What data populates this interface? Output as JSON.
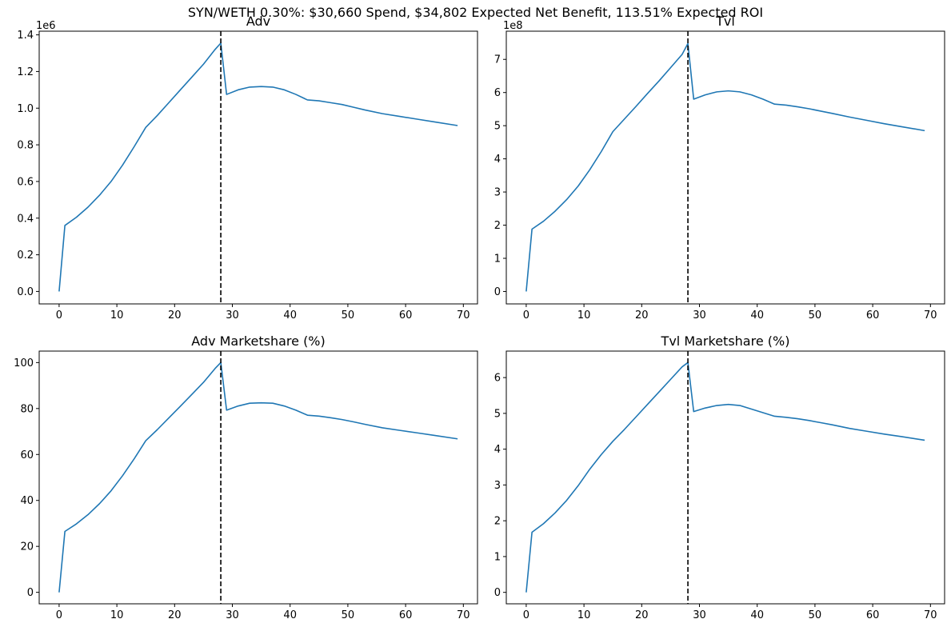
{
  "figure_title": "SYN/WETH 0.30%: $30,660 Spend, $34,802 Expected Net Benefit, 113.51% Expected ROI",
  "colors": {
    "line": "#1f77b4",
    "vline": "#000000",
    "axes": "#000000"
  },
  "chart_data": [
    {
      "type": "line",
      "title": "Adv",
      "xlabel": "",
      "ylabel": "",
      "offset_text": "1e6",
      "xlim": [
        -3.45,
        72.45
      ],
      "ylim": [
        -0.068,
        1.42
      ],
      "xticks": [
        0,
        10,
        20,
        30,
        40,
        50,
        60,
        70
      ],
      "xtick_labels": [
        "0",
        "10",
        "20",
        "30",
        "40",
        "50",
        "60",
        "70"
      ],
      "yticks": [
        0.0,
        0.2,
        0.4,
        0.6,
        0.8,
        1.0,
        1.2,
        1.4
      ],
      "ytick_labels": [
        "0.0",
        "0.2",
        "0.4",
        "0.6",
        "0.8",
        "1.0",
        "1.2",
        "1.4"
      ],
      "vline_x": 28,
      "series": [
        {
          "x": [
            0,
            1,
            3,
            5,
            7,
            9,
            11,
            13,
            15,
            17,
            19,
            21,
            23,
            25,
            27,
            28,
            29,
            31,
            33,
            35,
            37,
            39,
            41,
            43,
            45,
            47,
            49,
            51,
            53,
            56,
            59,
            62,
            65,
            69
          ],
          "y": [
            0.0,
            0.36,
            0.405,
            0.46,
            0.525,
            0.6,
            0.69,
            0.79,
            0.895,
            0.96,
            1.03,
            1.1,
            1.17,
            1.24,
            1.32,
            1.355,
            1.075,
            1.1,
            1.115,
            1.118,
            1.115,
            1.1,
            1.075,
            1.045,
            1.04,
            1.03,
            1.02,
            1.005,
            0.99,
            0.97,
            0.955,
            0.94,
            0.925,
            0.905
          ]
        }
      ]
    },
    {
      "type": "line",
      "title": "Tvl",
      "xlabel": "",
      "ylabel": "",
      "offset_text": "1e8",
      "xlim": [
        -3.45,
        72.45
      ],
      "ylim": [
        -0.375,
        7.85
      ],
      "xticks": [
        0,
        10,
        20,
        30,
        40,
        50,
        60,
        70
      ],
      "xtick_labels": [
        "0",
        "10",
        "20",
        "30",
        "40",
        "50",
        "60",
        "70"
      ],
      "yticks": [
        0,
        1,
        2,
        3,
        4,
        5,
        6,
        7
      ],
      "ytick_labels": [
        "0",
        "1",
        "2",
        "3",
        "4",
        "5",
        "6",
        "7"
      ],
      "vline_x": 28,
      "series": [
        {
          "x": [
            0,
            1,
            3,
            5,
            7,
            9,
            11,
            13,
            15,
            17,
            19,
            21,
            23,
            25,
            27,
            28,
            29,
            31,
            33,
            35,
            37,
            39,
            41,
            43,
            45,
            47,
            49,
            51,
            53,
            56,
            59,
            62,
            65,
            69
          ],
          "y": [
            0.0,
            1.88,
            2.12,
            2.42,
            2.77,
            3.18,
            3.67,
            4.22,
            4.82,
            5.2,
            5.58,
            5.97,
            6.35,
            6.75,
            7.15,
            7.48,
            5.8,
            5.93,
            6.02,
            6.05,
            6.02,
            5.93,
            5.8,
            5.65,
            5.62,
            5.57,
            5.51,
            5.44,
            5.37,
            5.26,
            5.16,
            5.06,
            4.97,
            4.85
          ]
        }
      ]
    },
    {
      "type": "line",
      "title": "Adv Marketshare (%)",
      "xlabel": "",
      "ylabel": "",
      "offset_text": "",
      "xlim": [
        -3.45,
        72.45
      ],
      "ylim": [
        -5.0,
        105.0
      ],
      "xticks": [
        0,
        10,
        20,
        30,
        40,
        50,
        60,
        70
      ],
      "xtick_labels": [
        "0",
        "10",
        "20",
        "30",
        "40",
        "50",
        "60",
        "70"
      ],
      "yticks": [
        0,
        20,
        40,
        60,
        80,
        100
      ],
      "ytick_labels": [
        "0",
        "20",
        "40",
        "60",
        "80",
        "100"
      ],
      "vline_x": 28,
      "series": [
        {
          "x": [
            0,
            1,
            3,
            5,
            7,
            9,
            11,
            13,
            15,
            17,
            19,
            21,
            23,
            25,
            27,
            28,
            29,
            31,
            33,
            35,
            37,
            39,
            41,
            43,
            45,
            47,
            49,
            51,
            53,
            56,
            59,
            62,
            65,
            69
          ],
          "y": [
            0.0,
            26.5,
            29.8,
            33.8,
            38.6,
            44.2,
            50.8,
            58.1,
            66.0,
            70.8,
            75.9,
            81.0,
            86.2,
            91.4,
            97.4,
            100.0,
            79.3,
            81.1,
            82.3,
            82.5,
            82.3,
            81.1,
            79.3,
            77.1,
            76.7,
            76.0,
            75.2,
            74.2,
            73.1,
            71.6,
            70.5,
            69.4,
            68.3,
            66.8
          ]
        }
      ]
    },
    {
      "type": "line",
      "title": "Tvl Marketshare (%)",
      "xlabel": "",
      "ylabel": "",
      "offset_text": "",
      "xlim": [
        -3.45,
        72.45
      ],
      "ylim": [
        -0.32,
        6.74
      ],
      "xticks": [
        0,
        10,
        20,
        30,
        40,
        50,
        60,
        70
      ],
      "xtick_labels": [
        "0",
        "10",
        "20",
        "30",
        "40",
        "50",
        "60",
        "70"
      ],
      "yticks": [
        0,
        1,
        2,
        3,
        4,
        5,
        6
      ],
      "ytick_labels": [
        "0",
        "1",
        "2",
        "3",
        "4",
        "5",
        "6"
      ],
      "vline_x": 28,
      "series": [
        {
          "x": [
            0,
            1,
            3,
            5,
            7,
            9,
            11,
            13,
            15,
            17,
            19,
            21,
            23,
            25,
            27,
            28,
            29,
            31,
            33,
            35,
            37,
            39,
            41,
            43,
            45,
            47,
            49,
            51,
            53,
            56,
            59,
            62,
            65,
            69
          ],
          "y": [
            0.0,
            1.68,
            1.92,
            2.22,
            2.57,
            2.98,
            3.44,
            3.85,
            4.22,
            4.55,
            4.9,
            5.25,
            5.6,
            5.95,
            6.3,
            6.42,
            5.05,
            5.15,
            5.22,
            5.25,
            5.22,
            5.12,
            5.02,
            4.92,
            4.89,
            4.85,
            4.8,
            4.74,
            4.68,
            4.58,
            4.5,
            4.42,
            4.35,
            4.25
          ]
        }
      ]
    }
  ]
}
